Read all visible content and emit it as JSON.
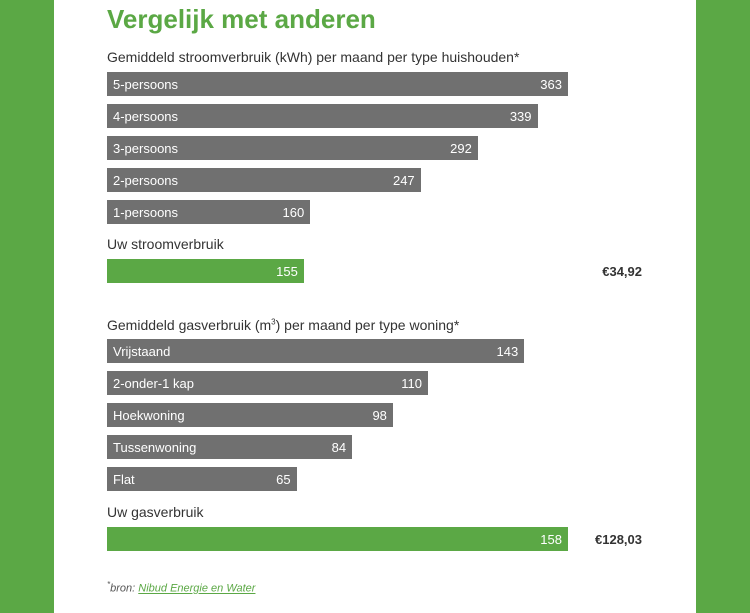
{
  "title": "Vergelijk met anderen",
  "chart_data": [
    {
      "type": "bar",
      "title": "Gemiddeld stroomverbruik (kWh) per maand per type huishouden*",
      "categories": [
        "5-persoons",
        "4-persoons",
        "3-persoons",
        "2-persoons",
        "1-persoons"
      ],
      "values": [
        363,
        339,
        292,
        247,
        160
      ],
      "own": {
        "label": "Uw stroomverbruik",
        "value": 155,
        "price": "€34,92"
      }
    },
    {
      "type": "bar",
      "title_pre": "Gemiddeld gasverbruik (m",
      "title_sup": "3",
      "title_post": ") per maand per type woning*",
      "categories": [
        "Vrijstaand",
        "2-onder-1 kap",
        "Hoekwoning",
        "Tussenwoning",
        "Flat"
      ],
      "values": [
        143,
        110,
        98,
        84,
        65
      ],
      "own": {
        "label": "Uw gasverbruik",
        "value": 158,
        "price": "€128,03"
      }
    }
  ],
  "footer": {
    "marker": "*",
    "prefix": "bron: ",
    "link": "Nibud Energie en Water"
  },
  "colors": {
    "average_bar": "#707070",
    "own_bar": "#5ba845",
    "background": "#5ba845"
  }
}
